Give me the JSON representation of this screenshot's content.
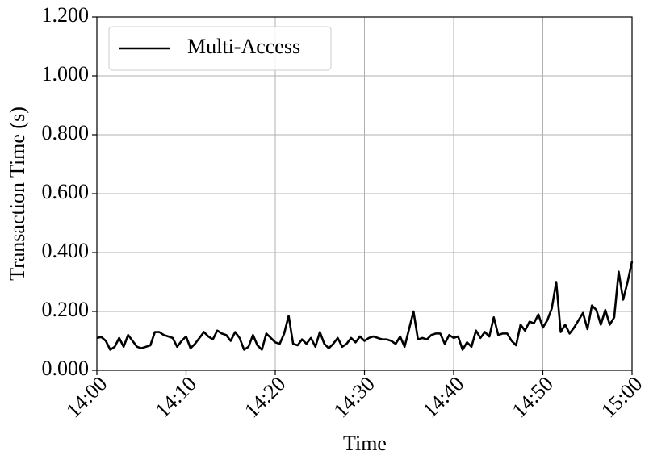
{
  "chart_data": {
    "type": "line",
    "xlabel": "Time",
    "ylabel": "Transaction Time (s)",
    "x": [
      0,
      0.5,
      1,
      1.5,
      2,
      2.5,
      3,
      3.5,
      4,
      4.5,
      5,
      5.5,
      6,
      6.5,
      7,
      7.5,
      8,
      8.5,
      9,
      9.5,
      10,
      10.5,
      11,
      11.5,
      12,
      12.5,
      13,
      13.5,
      14,
      14.5,
      15,
      15.5,
      16,
      16.5,
      17,
      17.5,
      18,
      18.5,
      19,
      19.5,
      20,
      20.5,
      21,
      21.5,
      22,
      22.5,
      23,
      23.5,
      24,
      24.5,
      25,
      25.5,
      26,
      26.5,
      27,
      27.5,
      28,
      28.5,
      29,
      29.5,
      30,
      30.5,
      31,
      31.5,
      32,
      32.5,
      33,
      33.5,
      34,
      34.5,
      35,
      35.5,
      36,
      36.5,
      37,
      37.5,
      38,
      38.5,
      39,
      39.5,
      40,
      40.5,
      41,
      41.5,
      42,
      42.5,
      43,
      43.5,
      44,
      44.5,
      45,
      45.5,
      46,
      46.5,
      47,
      47.5,
      48,
      48.5,
      49,
      49.5,
      50,
      50.5,
      51,
      51.5,
      52,
      52.5,
      53,
      53.5,
      54,
      54.5,
      55,
      55.5,
      56,
      56.5,
      57,
      57.5,
      58,
      58.5,
      59,
      59.5,
      60
    ],
    "series": [
      {
        "name": "Multi-Access",
        "color": "#000000",
        "values": [
          0.11,
          0.113,
          0.1,
          0.07,
          0.08,
          0.11,
          0.08,
          0.12,
          0.1,
          0.08,
          0.075,
          0.08,
          0.085,
          0.13,
          0.13,
          0.12,
          0.115,
          0.11,
          0.08,
          0.1,
          0.115,
          0.075,
          0.09,
          0.11,
          0.13,
          0.115,
          0.105,
          0.135,
          0.125,
          0.12,
          0.1,
          0.13,
          0.11,
          0.07,
          0.08,
          0.12,
          0.085,
          0.07,
          0.125,
          0.11,
          0.095,
          0.09,
          0.125,
          0.185,
          0.09,
          0.085,
          0.105,
          0.09,
          0.11,
          0.08,
          0.13,
          0.09,
          0.075,
          0.09,
          0.11,
          0.08,
          0.09,
          0.11,
          0.095,
          0.115,
          0.1,
          0.11,
          0.115,
          0.11,
          0.105,
          0.105,
          0.1,
          0.09,
          0.115,
          0.08,
          0.14,
          0.2,
          0.105,
          0.11,
          0.105,
          0.12,
          0.125,
          0.125,
          0.09,
          0.12,
          0.11,
          0.115,
          0.07,
          0.095,
          0.08,
          0.135,
          0.11,
          0.13,
          0.115,
          0.18,
          0.12,
          0.125,
          0.125,
          0.1,
          0.085,
          0.155,
          0.135,
          0.165,
          0.16,
          0.19,
          0.145,
          0.17,
          0.21,
          0.3,
          0.13,
          0.155,
          0.125,
          0.145,
          0.17,
          0.195,
          0.14,
          0.22,
          0.205,
          0.155,
          0.205,
          0.155,
          0.18,
          0.335,
          0.24,
          0.3,
          0.37
        ]
      }
    ],
    "xlim": [
      0,
      60
    ],
    "xticks": [
      {
        "value": 0,
        "label": "14:00"
      },
      {
        "value": 10,
        "label": "14:10"
      },
      {
        "value": 20,
        "label": "14:20"
      },
      {
        "value": 30,
        "label": "14:30"
      },
      {
        "value": 40,
        "label": "14:40"
      },
      {
        "value": 50,
        "label": "14:50"
      },
      {
        "value": 60,
        "label": "15:00"
      }
    ],
    "ylim": [
      0,
      1.2
    ],
    "yticks": [
      {
        "value": 0,
        "label": "0.000"
      },
      {
        "value": 0.2,
        "label": "0.200"
      },
      {
        "value": 0.4,
        "label": "0.400"
      },
      {
        "value": 0.6,
        "label": "0.600"
      },
      {
        "value": 0.8,
        "label": "0.800"
      },
      {
        "value": 1.0,
        "label": "1.000"
      },
      {
        "value": 1.2,
        "label": "1.200"
      }
    ],
    "grid": true,
    "legend": "upper left"
  }
}
